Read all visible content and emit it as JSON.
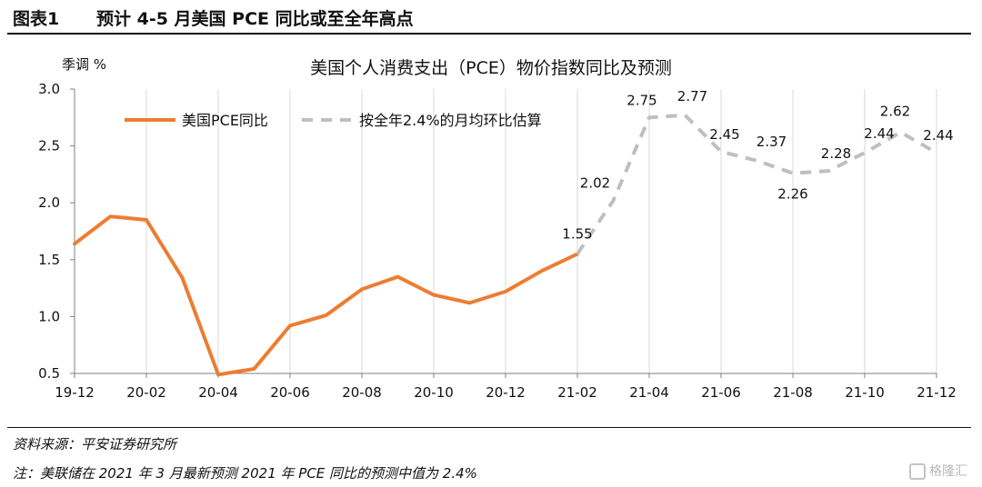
{
  "header": {
    "figure_no": "图表1",
    "title": "预计 4-5 月美国 PCE 同比或至全年高点"
  },
  "chart_data": {
    "type": "line",
    "title": "美国个人消费支出（PCE）物价指数同比及预测",
    "ylabel": "季调 %",
    "ylim": [
      0.5,
      3.0
    ],
    "yticks": [
      "0.5",
      "1.0",
      "1.5",
      "2.0",
      "2.5",
      "3.0"
    ],
    "x_tick_labels": [
      "19-12",
      "20-02",
      "20-04",
      "20-06",
      "20-08",
      "20-10",
      "20-12",
      "21-02",
      "21-04",
      "21-06",
      "21-08",
      "21-10",
      "21-12"
    ],
    "legend_position": "top-left",
    "series": [
      {
        "name": "美国PCE同比",
        "style": "solid",
        "color": "#ED7D31",
        "x": [
          "19-12",
          "20-01",
          "20-02",
          "20-03",
          "20-04",
          "20-05",
          "20-06",
          "20-07",
          "20-08",
          "20-09",
          "20-10",
          "20-11",
          "20-12",
          "21-01",
          "21-02"
        ],
        "values": [
          1.64,
          1.88,
          1.85,
          1.34,
          0.49,
          0.54,
          0.92,
          1.01,
          1.24,
          1.35,
          1.19,
          1.12,
          1.22,
          1.4,
          1.55
        ]
      },
      {
        "name": "按全年2.4%的月均环比估算",
        "style": "dashed",
        "color": "#BFBFBF",
        "x": [
          "21-02",
          "21-03",
          "21-04",
          "21-05",
          "21-06",
          "21-07",
          "21-08",
          "21-09",
          "21-10",
          "21-11",
          "21-12"
        ],
        "values": [
          1.55,
          2.02,
          2.75,
          2.77,
          2.45,
          2.37,
          2.26,
          2.28,
          2.44,
          2.62,
          2.44
        ]
      }
    ],
    "data_labels": [
      {
        "x": "21-02",
        "text": "1.55"
      },
      {
        "x": "21-03",
        "text": "2.02"
      },
      {
        "x": "21-04",
        "text": "2.75"
      },
      {
        "x": "21-05",
        "text": "2.77"
      },
      {
        "x": "21-06",
        "text": "2.45"
      },
      {
        "x": "21-07",
        "text": "2.37"
      },
      {
        "x": "21-08",
        "text": "2.26"
      },
      {
        "x": "21-09",
        "text": "2.28"
      },
      {
        "x": "21-10",
        "text": "2.44"
      },
      {
        "x": "21-11",
        "text": "2.62"
      },
      {
        "x": "21-12",
        "text": "2.44"
      }
    ]
  },
  "footer": {
    "source": "资料来源：平安证券研究所",
    "note": "注：美联储在 2021 年 3 月最新预测 2021 年 PCE 同比的预测中值为 2.4%",
    "watermark": "格隆汇"
  }
}
